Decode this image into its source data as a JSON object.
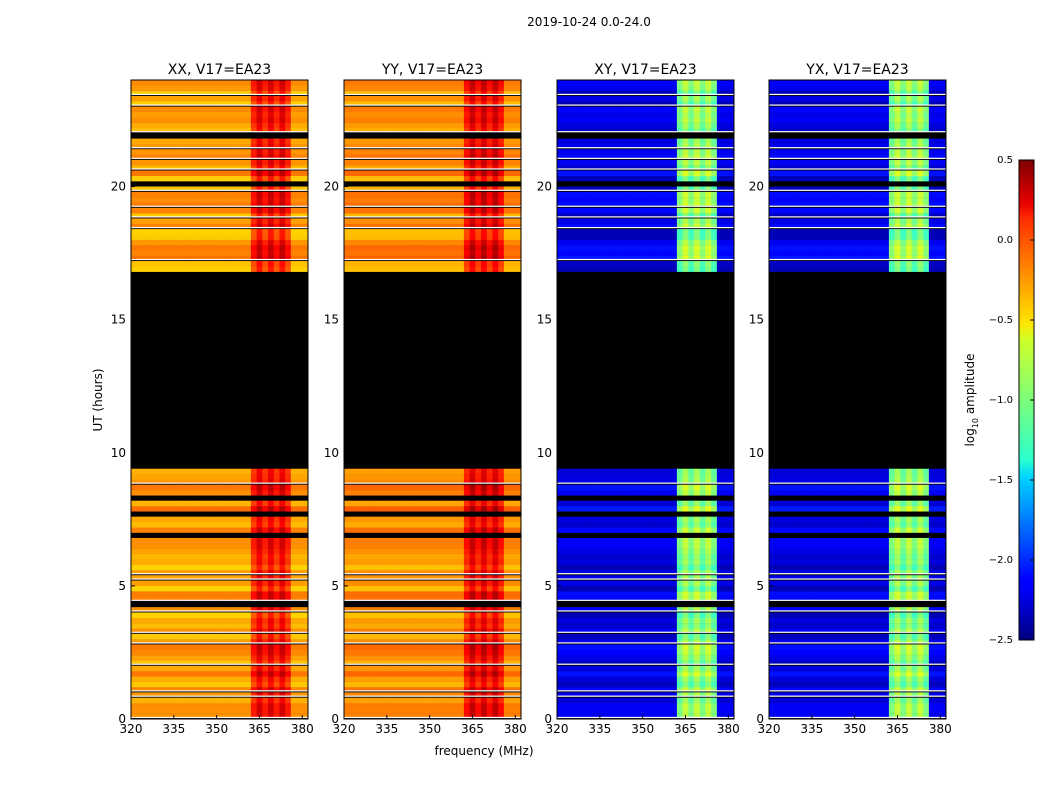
{
  "figure": {
    "suptitle": "2019-10-24 0.0-24.0"
  },
  "chart_data": {
    "type": "heatmap",
    "shared_axes": {
      "xlabel": "frequency (MHz)",
      "ylabel": "UT (hours)",
      "xlim": [
        320,
        382
      ],
      "ylim": [
        0,
        24
      ],
      "xticks": [
        320,
        335,
        350,
        365,
        380
      ],
      "yticks": [
        0,
        5,
        10,
        15,
        20
      ]
    },
    "colorbar": {
      "label": "log10 amplitude",
      "label_main": "log",
      "label_sub": "10",
      "label_rest": " amplitude",
      "range": [
        -2.5,
        0.5
      ],
      "ticks": [
        0.5,
        0.0,
        -0.5,
        -1.0,
        -1.5,
        -2.0,
        -2.5
      ],
      "tick_labels": [
        "0.5",
        "0.0",
        "−0.5",
        "−1.0",
        "−1.5",
        "−2.0",
        "−2.5"
      ],
      "colormap": "jet"
    },
    "flagged_ut_range_hours": [
      9.3,
      16.8
    ],
    "rfi_band_mhz": [
      361,
      375
    ],
    "panels": [
      {
        "title": "XX, V17=EA23",
        "pol": "XX",
        "base_level": -0.35,
        "band_level": 0.05
      },
      {
        "title": "YY, V17=EA23",
        "pol": "YY",
        "base_level": -0.3,
        "band_level": 0.1
      },
      {
        "title": "XY, V17=EA23",
        "pol": "XY",
        "base_level": -2.2,
        "band_level": -1.0
      },
      {
        "title": "YX, V17=EA23",
        "pol": "YX",
        "base_level": -2.2,
        "band_level": -1.0
      }
    ]
  }
}
